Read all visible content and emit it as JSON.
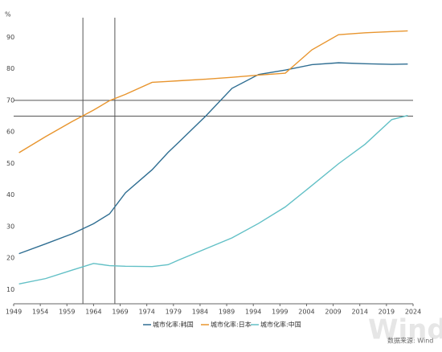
{
  "chart_data": {
    "type": "line",
    "y_unit": "%",
    "x": [
      1950,
      1955,
      1960,
      1964,
      1967,
      1970,
      1975,
      1978,
      1980,
      1985,
      1990,
      1995,
      2000,
      2005,
      2010,
      2015,
      2020,
      2023
    ],
    "series": [
      {
        "name": "城市化率:韩国",
        "color": "#2f6e92",
        "values": [
          21.4,
          24.5,
          27.7,
          30.9,
          34.0,
          40.7,
          48.0,
          53.5,
          56.7,
          64.9,
          73.8,
          78.2,
          79.6,
          81.3,
          81.9,
          81.6,
          81.4,
          81.5
        ]
      },
      {
        "name": "城市化率:日本",
        "color": "#e8952e",
        "values": [
          53.4,
          58.5,
          63.3,
          66.9,
          69.9,
          71.9,
          75.7,
          76.0,
          76.2,
          76.7,
          77.3,
          78.0,
          78.6,
          86.0,
          90.8,
          91.4,
          91.8,
          92.0
        ]
      },
      {
        "name": "城市化率:中国",
        "color": "#62c0c6",
        "values": [
          11.8,
          13.5,
          16.2,
          18.3,
          17.6,
          17.4,
          17.3,
          17.9,
          19.4,
          22.9,
          26.4,
          31.0,
          36.2,
          43.0,
          49.9,
          56.1,
          63.9,
          65.2
        ]
      }
    ],
    "hlines": [
      70,
      65
    ],
    "vlines": [
      1962,
      1968
    ],
    "reference_color": "#555555",
    "xlim": [
      1949,
      2024
    ],
    "xticks": [
      1949,
      1954,
      1959,
      1964,
      1969,
      1974,
      1979,
      1984,
      1989,
      1994,
      1999,
      2004,
      2009,
      2014,
      2019,
      2024
    ],
    "ylim": [
      5,
      95
    ],
    "yticks": [
      10,
      20,
      30,
      40,
      50,
      60,
      70,
      80,
      90
    ],
    "source": "数据来源: Wind",
    "watermark": "Wind"
  }
}
